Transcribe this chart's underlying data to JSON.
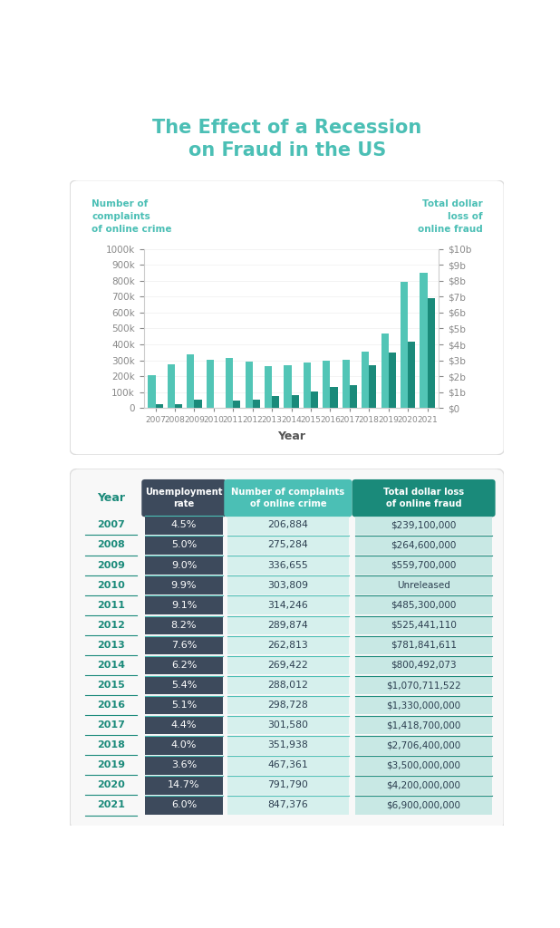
{
  "title_line1": "The Effect of a Recession",
  "title_line2": "on Fraud in the US",
  "title_color": "#4BBFB5",
  "background_color": "#FFFFFF",
  "years": [
    2007,
    2008,
    2009,
    2010,
    2011,
    2012,
    2013,
    2014,
    2015,
    2016,
    2017,
    2018,
    2019,
    2020,
    2021
  ],
  "complaints": [
    206884,
    275284,
    336655,
    303809,
    314246,
    289874,
    262813,
    269422,
    288012,
    298728,
    301580,
    351938,
    467361,
    791790,
    847376
  ],
  "dollar_loss": [
    239100000,
    264600000,
    559700000,
    0,
    485300000,
    525441110,
    781841611,
    800492073,
    1070711522,
    1330000000,
    1418700000,
    2706400000,
    3500000000,
    4200000000,
    6900000000
  ],
  "bar_color_complaints": "#52C5B6",
  "bar_color_dollar": "#1A8A7A",
  "left_axis_label": "Number of\ncomplaints\nof online crime",
  "right_axis_label": "Total dollar\nloss of\nonline fraud",
  "xlabel": "Year",
  "ylim_left": [
    0,
    1000000
  ],
  "ylim_right": [
    0,
    10000000000
  ],
  "unemployment_rates": [
    "4.5%",
    "5.0%",
    "9.0%",
    "9.9%",
    "9.1%",
    "8.2%",
    "7.6%",
    "6.2%",
    "5.4%",
    "5.1%",
    "4.4%",
    "4.0%",
    "3.6%",
    "14.7%",
    "6.0%"
  ],
  "dollar_loss_labels": [
    "$239,100,000",
    "$264,600,000",
    "$559,700,000",
    "Unreleased",
    "$485,300,000",
    "$525,441,110",
    "$781,841,611",
    "$800,492,073",
    "$1,070,711,522",
    "$1,330,000,000",
    "$1,418,700,000",
    "$2,706,400,000",
    "$3,500,000,000",
    "$4,200,000,000",
    "$6,900,000,000"
  ],
  "complaints_labels": [
    "206,884",
    "275,284",
    "336,655",
    "303,809",
    "314,246",
    "289,874",
    "262,813",
    "269,422",
    "288,012",
    "298,728",
    "301,580",
    "351,938",
    "467,361",
    "791,790",
    "847,376"
  ],
  "col1_bg": "#3D4A5C",
  "col2_bg": "#4BBFB5",
  "col3_bg": "#1A8A7A",
  "year_text_color": "#1A8A7A",
  "axis_label_color": "#4BBFB5",
  "axis_tick_color": "#888888",
  "grid_color": "#EEEEEE"
}
